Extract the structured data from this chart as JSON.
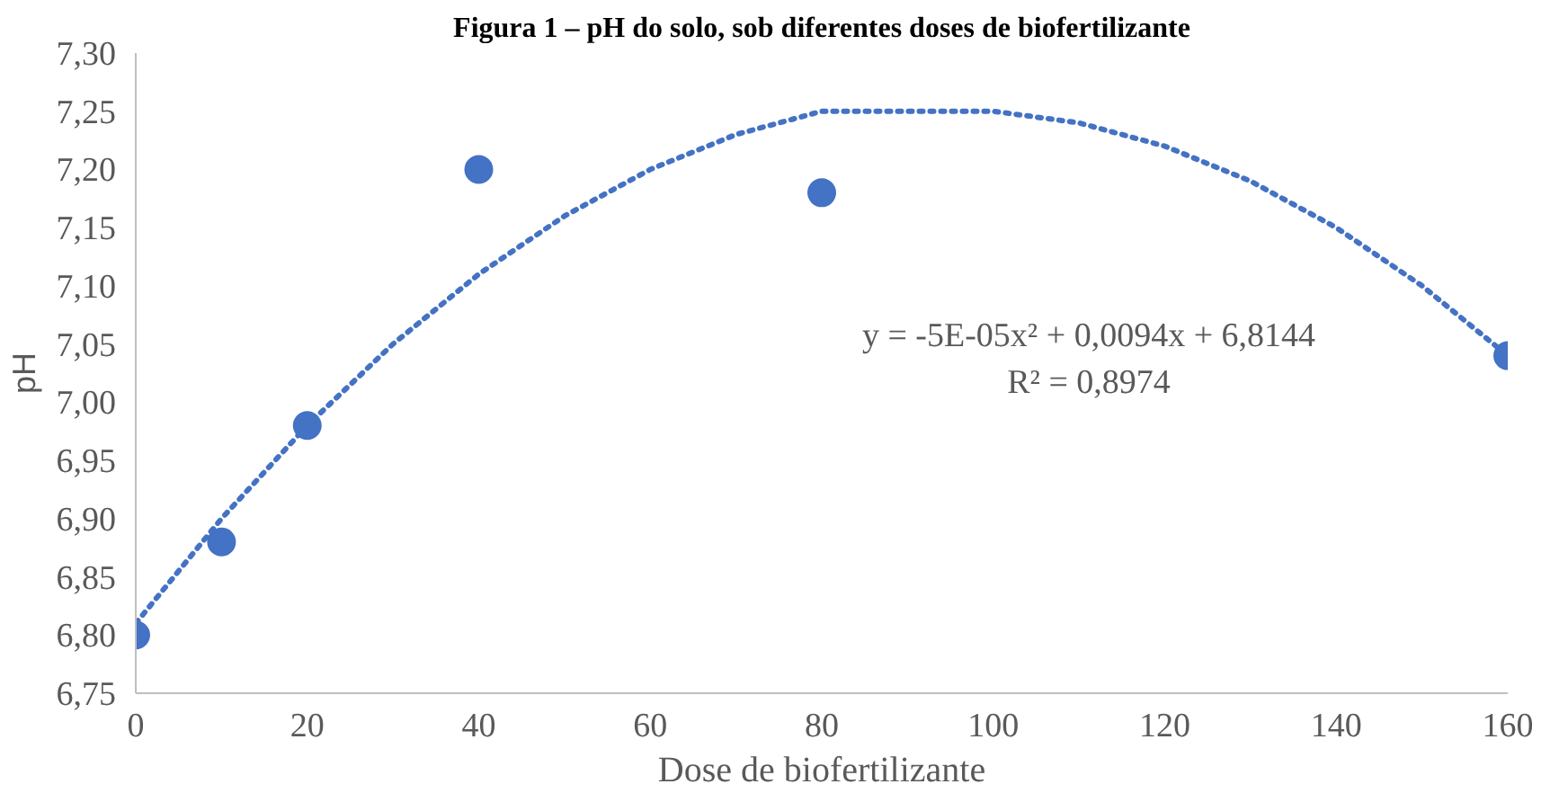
{
  "chart_data": {
    "type": "scatter",
    "title": "Figura 1 – pH do solo, sob diferentes doses de biofertilizante",
    "xlabel": "Dose de biofertilizante",
    "ylabel": "pH",
    "annotations": [
      "y = -5E-05x² + 0,0094x + 6,8144",
      "R² = 0,8974"
    ],
    "x": [
      0,
      10,
      20,
      40,
      80,
      160
    ],
    "series": [
      {
        "color": "#4472c4",
        "marker": "circle",
        "values": [
          6.8,
          6.88,
          6.98,
          7.2,
          7.18,
          7.04
        ]
      },
      {
        "type": "line",
        "color": "#4472c4",
        "line_style": "dotted",
        "marker": "none",
        "x": [
          0,
          10,
          20,
          30,
          40,
          50,
          60,
          70,
          80,
          90,
          100,
          110,
          120,
          130,
          140,
          150,
          160
        ],
        "values": [
          6.81,
          6.9,
          6.98,
          7.05,
          7.11,
          7.16,
          7.2,
          7.23,
          7.25,
          7.25,
          7.25,
          7.24,
          7.22,
          7.19,
          7.15,
          7.1,
          7.04
        ]
      }
    ],
    "xlim": [
      0,
      160
    ],
    "xticks": [
      0,
      20,
      40,
      60,
      80,
      100,
      120,
      140,
      160
    ],
    "ylim": [
      6.75,
      7.3
    ],
    "yticks": [
      {
        "value": 6.75,
        "label": "6,75"
      },
      {
        "value": 6.8,
        "label": "6,80"
      },
      {
        "value": 6.85,
        "label": "6,85"
      },
      {
        "value": 6.9,
        "label": "6,90"
      },
      {
        "value": 6.95,
        "label": "6,95"
      },
      {
        "value": 7.0,
        "label": "7,00"
      },
      {
        "value": 7.05,
        "label": "7,05"
      },
      {
        "value": 7.1,
        "label": "7,10"
      },
      {
        "value": 7.15,
        "label": "7,15"
      },
      {
        "value": 7.2,
        "label": "7,20"
      },
      {
        "value": 7.25,
        "label": "7,25"
      },
      {
        "value": 7.3,
        "label": "7,30"
      }
    ],
    "grid": false
  }
}
